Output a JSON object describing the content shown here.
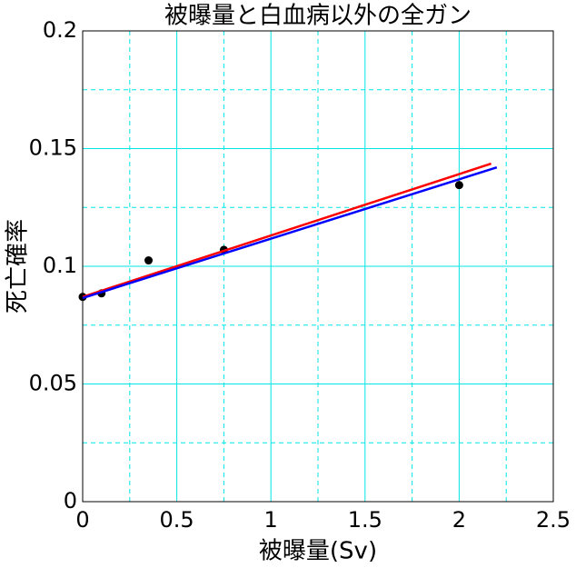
{
  "chart_data": {
    "type": "scatter",
    "title": "被曝量と白血病以外の全ガン",
    "xlabel": "被曝量(Sv)",
    "ylabel": "死亡確率",
    "xlim": [
      0,
      2.5
    ],
    "xticks": [
      0,
      0.5,
      1,
      1.5,
      2,
      2.5
    ],
    "xminorticks": [
      0.25,
      0.75,
      1.25,
      1.75,
      2.25
    ],
    "ylim": [
      0,
      0.2
    ],
    "yticks": [
      0,
      0.05,
      0.1,
      0.15,
      0.2
    ],
    "yminorticks": [
      0.025,
      0.075,
      0.125,
      0.175
    ],
    "grid": true,
    "grid_color": "#00e5e5",
    "series": [
      {
        "style": "points",
        "color": "#000000",
        "x": [
          0,
          0.1,
          0.35,
          0.75,
          2.0
        ],
        "values": [
          0.087,
          0.0885,
          0.1025,
          0.107,
          0.1345
        ]
      },
      {
        "style": "line",
        "color": "#ff0000",
        "x": [
          0,
          2.17
        ],
        "values": [
          0.087,
          0.1436
        ]
      },
      {
        "style": "line",
        "color": "#0000ff",
        "x": [
          0,
          2.2
        ],
        "values": [
          0.0865,
          0.142
        ]
      }
    ]
  }
}
